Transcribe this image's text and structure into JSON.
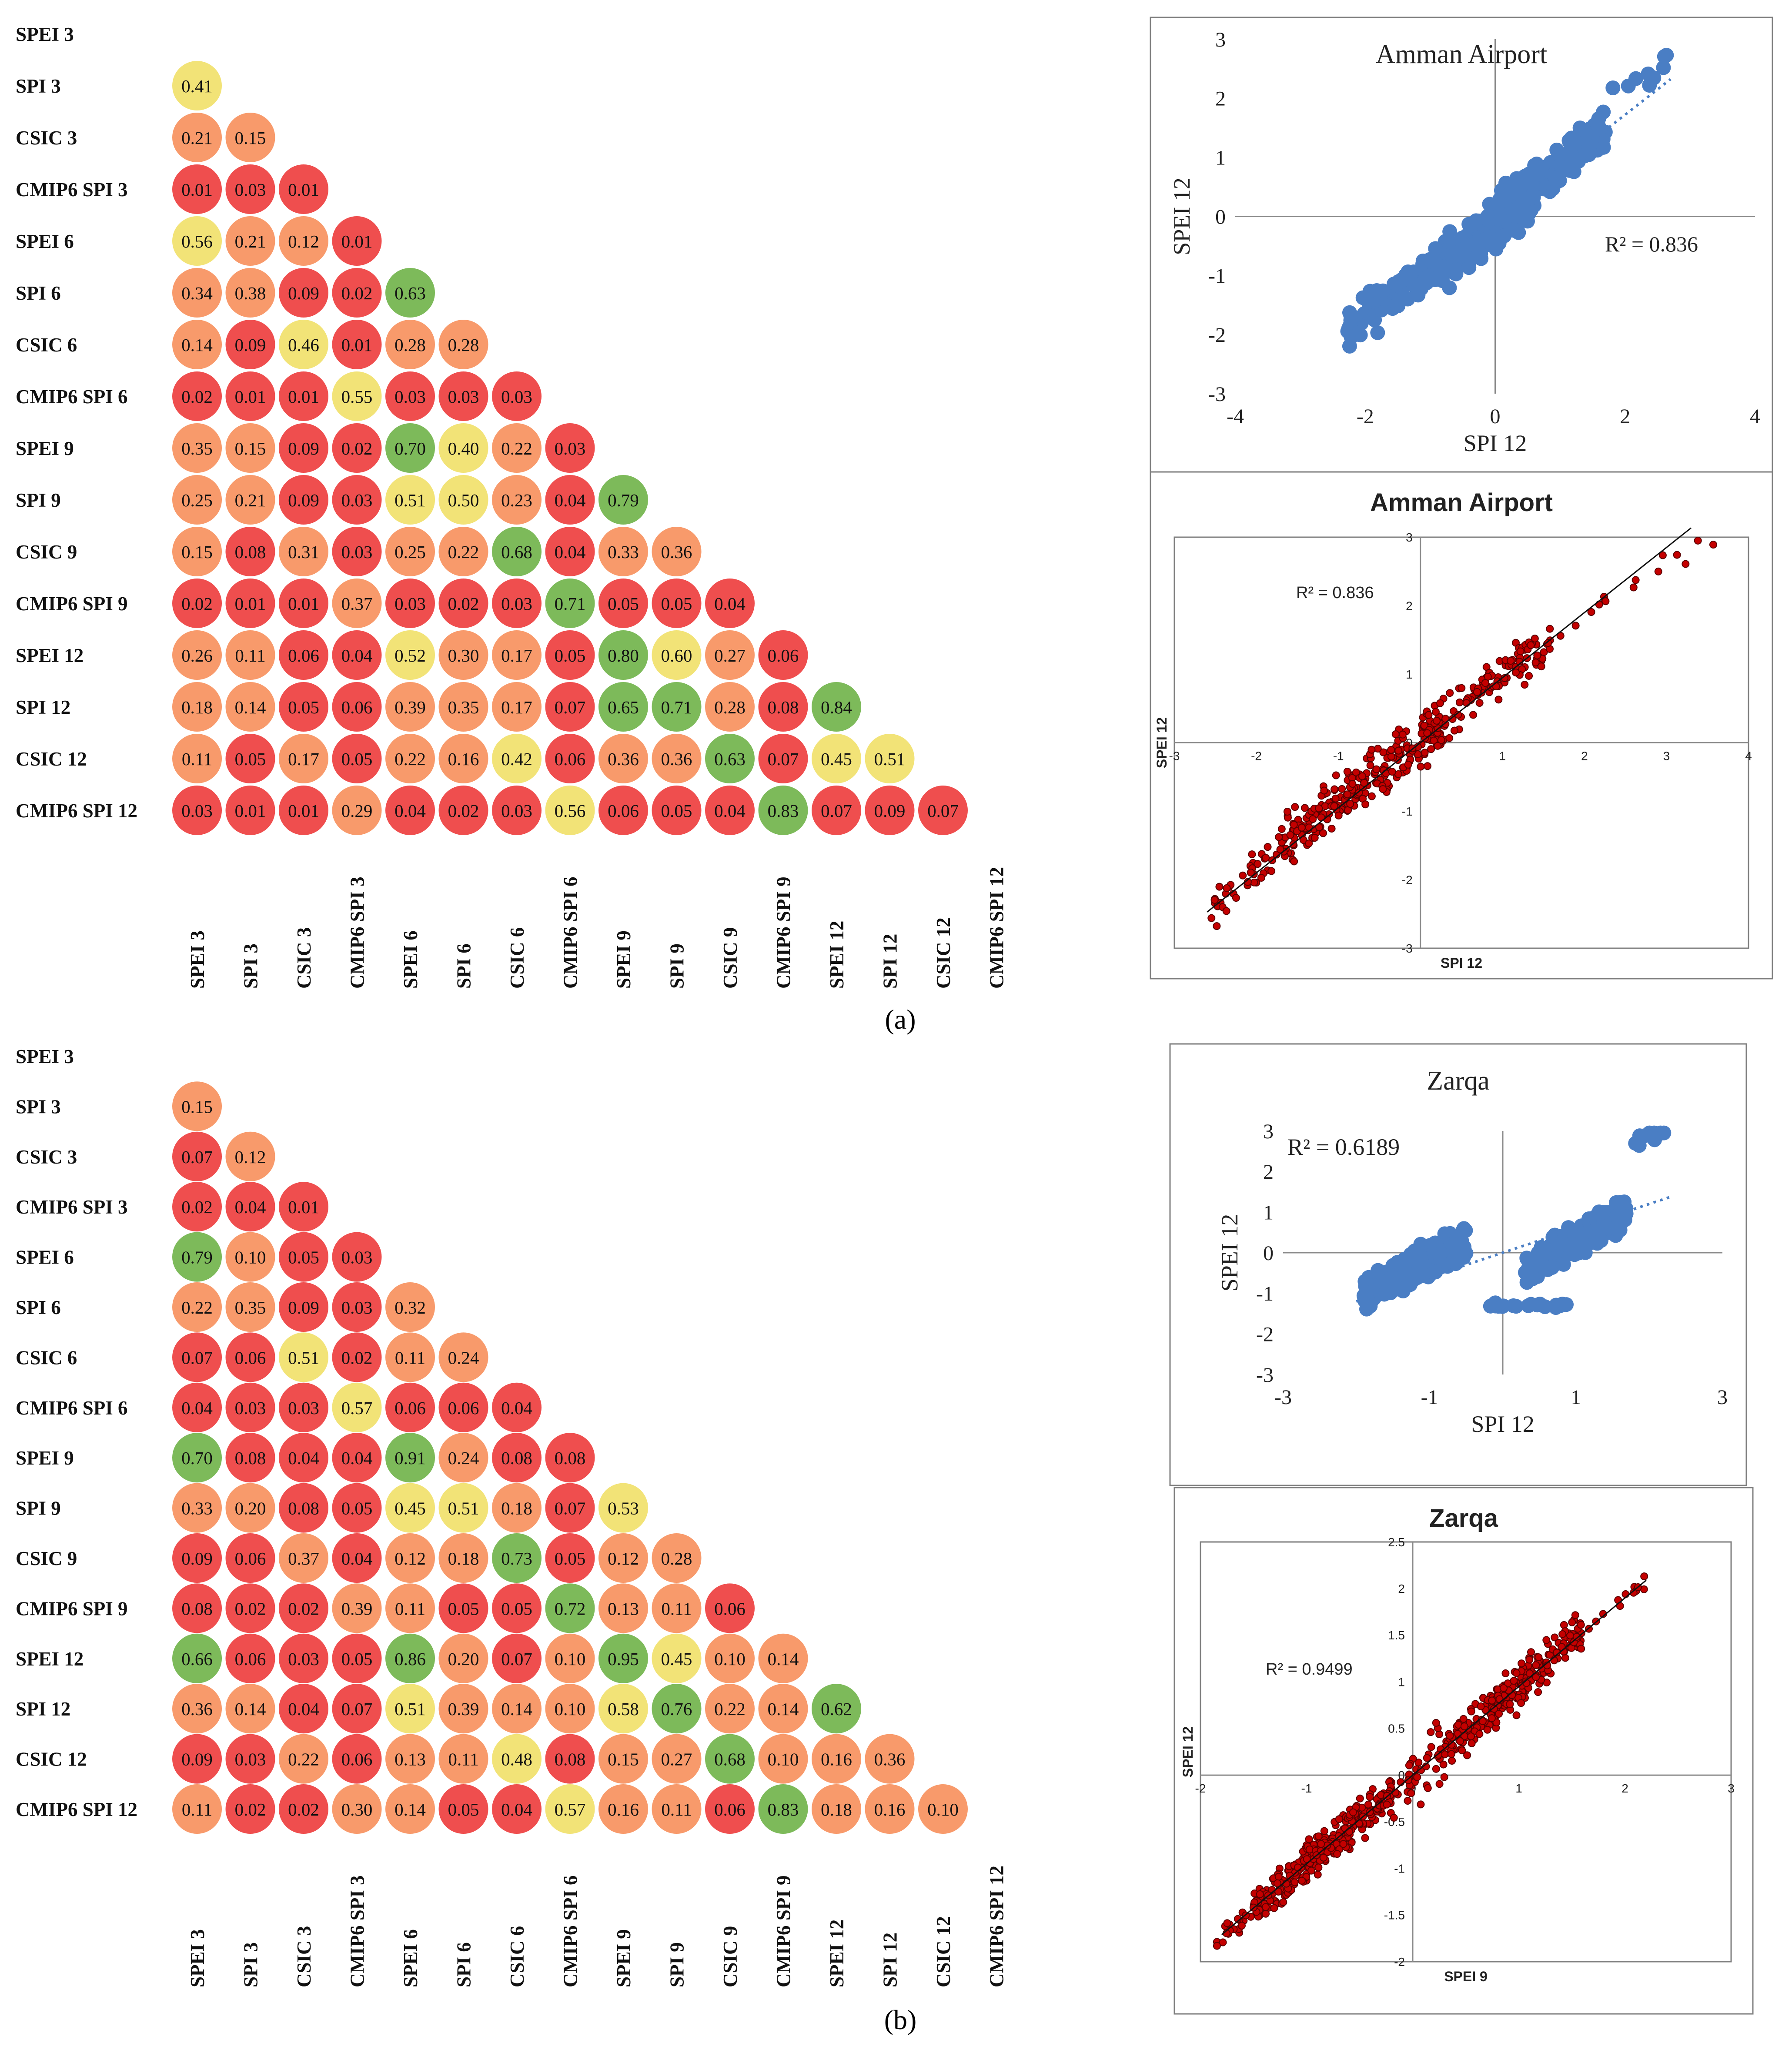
{
  "figure": {
    "panel_a": "(a)",
    "panel_b": "(b)"
  },
  "colors": {
    "low": "#ef4e4e",
    "mid_low": "#f89a6b",
    "mid": "#f2e377",
    "high": "#7dba5a",
    "blue_points": "#4a7ec4",
    "blue_trend": "#4a7ec4",
    "red_points": "#c40000",
    "red_point_edge": "#5a0000"
  },
  "chart_data": [
    {
      "type": "heatmap",
      "panel": "a",
      "labels": [
        "SPEI 3",
        "SPI 3",
        "CSIC 3",
        "CMIP6 SPI 3",
        "SPEI 6",
        "SPI 6",
        "CSIC 6",
        "CMIP6 SPI 6",
        "SPEI 9",
        "SPI 9",
        "CSIC 9",
        "CMIP6 SPI 9",
        "SPEI 12",
        "SPI 12",
        "CSIC 12",
        "CMIP6 SPI 12"
      ],
      "values": [
        [],
        [
          "0.41"
        ],
        [
          "0.21",
          "0.15"
        ],
        [
          "0.01",
          "0.03",
          "0.01"
        ],
        [
          "0.56",
          "0.21",
          "0.12",
          "0.01"
        ],
        [
          "0.34",
          "0.38",
          "0.09",
          "0.02",
          "0.63"
        ],
        [
          "0.14",
          "0.09",
          "0.46",
          "0.01",
          "0.28",
          "0.28"
        ],
        [
          "0.02",
          "0.01",
          "0.01",
          "0.55",
          "0.03",
          "0.03",
          "0.03"
        ],
        [
          "0.35",
          "0.15",
          "0.09",
          "0.02",
          "0.70",
          "0.40",
          "0.22",
          "0.03"
        ],
        [
          "0.25",
          "0.21",
          "0.09",
          "0.03",
          "0.51",
          "0.50",
          "0.23",
          "0.04",
          "0.79"
        ],
        [
          "0.15",
          "0.08",
          "0.31",
          "0.03",
          "0.25",
          "0.22",
          "0.68",
          "0.04",
          "0.33",
          "0.36"
        ],
        [
          "0.02",
          "0.01",
          "0.01",
          "0.37",
          "0.03",
          "0.02",
          "0.03",
          "0.71",
          "0.05",
          "0.05",
          "0.04"
        ],
        [
          "0.26",
          "0.11",
          "0.06",
          "0.04",
          "0.52",
          "0.30",
          "0.17",
          "0.05",
          "0.80",
          "0.60",
          "0.27",
          "0.06"
        ],
        [
          "0.18",
          "0.14",
          "0.05",
          "0.06",
          "0.39",
          "0.35",
          "0.17",
          "0.07",
          "0.65",
          "0.71",
          "0.28",
          "0.08",
          "0.84"
        ],
        [
          "0.11",
          "0.05",
          "0.17",
          "0.05",
          "0.22",
          "0.16",
          "0.42",
          "0.06",
          "0.36",
          "0.36",
          "0.63",
          "0.07",
          "0.45",
          "0.51"
        ],
        [
          "0.03",
          "0.01",
          "0.01",
          "0.29",
          "0.04",
          "0.02",
          "0.03",
          "0.56",
          "0.06",
          "0.05",
          "0.04",
          "0.83",
          "0.07",
          "0.09",
          "0.07"
        ]
      ]
    },
    {
      "type": "heatmap",
      "panel": "b",
      "labels": [
        "SPEI 3",
        "SPI 3",
        "CSIC 3",
        "CMIP6 SPI 3",
        "SPEI 6",
        "SPI 6",
        "CSIC 6",
        "CMIP6 SPI 6",
        "SPEI 9",
        "SPI 9",
        "CSIC 9",
        "CMIP6 SPI 9",
        "SPEI 12",
        "SPI 12",
        "CSIC 12",
        "CMIP6 SPI 12"
      ],
      "values": [
        [],
        [
          "0.15"
        ],
        [
          "0.07",
          "0.12"
        ],
        [
          "0.02",
          "0.04",
          "0.01"
        ],
        [
          "0.79",
          "0.10",
          "0.05",
          "0.03"
        ],
        [
          "0.22",
          "0.35",
          "0.09",
          "0.03",
          "0.32"
        ],
        [
          "0.07",
          "0.06",
          "0.51",
          "0.02",
          "0.11",
          "0.24"
        ],
        [
          "0.04",
          "0.03",
          "0.03",
          "0.57",
          "0.06",
          "0.06",
          "0.04"
        ],
        [
          "0.70",
          "0.08",
          "0.04",
          "0.04",
          "0.91",
          "0.24",
          "0.08",
          "0.08"
        ],
        [
          "0.33",
          "0.20",
          "0.08",
          "0.05",
          "0.45",
          "0.51",
          "0.18",
          "0.07",
          "0.53"
        ],
        [
          "0.09",
          "0.06",
          "0.37",
          "0.04",
          "0.12",
          "0.18",
          "0.73",
          "0.05",
          "0.12",
          "0.28"
        ],
        [
          "0.08",
          "0.02",
          "0.02",
          "0.39",
          "0.11",
          "0.05",
          "0.05",
          "0.72",
          "0.13",
          "0.11",
          "0.06"
        ],
        [
          "0.66",
          "0.06",
          "0.03",
          "0.05",
          "0.86",
          "0.20",
          "0.07",
          "0.10",
          "0.95",
          "0.45",
          "0.10",
          "0.14"
        ],
        [
          "0.36",
          "0.14",
          "0.04",
          "0.07",
          "0.51",
          "0.39",
          "0.14",
          "0.10",
          "0.58",
          "0.76",
          "0.22",
          "0.14",
          "0.62"
        ],
        [
          "0.09",
          "0.03",
          "0.22",
          "0.06",
          "0.13",
          "0.11",
          "0.48",
          "0.08",
          "0.15",
          "0.27",
          "0.68",
          "0.10",
          "0.16",
          "0.36"
        ],
        [
          "0.11",
          "0.02",
          "0.02",
          "0.30",
          "0.14",
          "0.05",
          "0.04",
          "0.57",
          "0.16",
          "0.11",
          "0.06",
          "0.83",
          "0.18",
          "0.16",
          "0.10"
        ]
      ]
    },
    {
      "type": "scatter",
      "style": "blue",
      "title": "Amman Airport",
      "xlabel": "SPI 12",
      "ylabel": "SPEI 12",
      "r2": "R² = 0.836",
      "xlim": [
        -4,
        4
      ],
      "ylim": [
        -3,
        3
      ],
      "xticks": [
        "-4",
        "-2",
        "0",
        "2",
        "4"
      ],
      "yticks": [
        "3",
        "2",
        "1",
        "0",
        "-1",
        "-2",
        "-3"
      ],
      "trend": {
        "slope": 0.86,
        "intercept": 0.0,
        "xfrom": -2.3,
        "xto": 2.7
      },
      "clusters": [
        {
          "n": 250,
          "xmin": -0.8,
          "xmax": 0.6,
          "slope": 0.85,
          "intercept": -0.15,
          "noise": 0.32
        },
        {
          "n": 160,
          "xmin": 0.0,
          "xmax": 1.7,
          "slope": 0.8,
          "intercept": 0.1,
          "noise": 0.3
        },
        {
          "n": 80,
          "xmin": -2.3,
          "xmax": -0.8,
          "slope": 0.8,
          "intercept": -0.1,
          "noise": 0.35
        },
        {
          "n": 10,
          "xmin": 1.8,
          "xmax": 2.7,
          "slope": 0.9,
          "intercept": 0.3,
          "noise": 0.25
        }
      ]
    },
    {
      "type": "scatter",
      "style": "red",
      "title": "Amman Airport",
      "xlabel": "SPI 12",
      "ylabel": "SPEI 12",
      "r2": "R² = 0.836",
      "xlim": [
        -3,
        4
      ],
      "ylim": [
        -3,
        3
      ],
      "xticks": [
        "-3",
        "-2",
        "-1",
        "0",
        "1",
        "2",
        "3",
        "4"
      ],
      "yticks": [
        "3",
        "2",
        "1",
        "0",
        "-1",
        "-2",
        "-3"
      ],
      "trend": {
        "slope": 0.95,
        "intercept": 0.0,
        "xfrom": -2.6,
        "xto": 3.3
      },
      "clusters": [
        {
          "n": 240,
          "xmin": -1.7,
          "xmax": 0.3,
          "slope": 0.85,
          "intercept": 0.0,
          "noise": 0.35
        },
        {
          "n": 120,
          "xmin": 0.0,
          "xmax": 1.6,
          "slope": 0.9,
          "intercept": 0.1,
          "noise": 0.3
        },
        {
          "n": 40,
          "xmin": -2.6,
          "xmax": -1.7,
          "slope": 0.9,
          "intercept": -0.1,
          "noise": 0.3
        },
        {
          "n": 15,
          "xmin": 1.6,
          "xmax": 3.6,
          "slope": 0.85,
          "intercept": 0.1,
          "noise": 0.2
        }
      ]
    },
    {
      "type": "scatter",
      "style": "blue",
      "title": "Zarqa",
      "xlabel": "SPI 12",
      "ylabel": "SPEI 12",
      "r2": "R² = 0.6189",
      "xlim": [
        -3,
        3
      ],
      "ylim": [
        -3,
        3
      ],
      "xticks": [
        "-3",
        "-1",
        "1",
        "3"
      ],
      "yticks": [
        "3",
        "2",
        "1",
        "0",
        "-1",
        "-2",
        "-3"
      ],
      "trend": {
        "slope": 0.6,
        "intercept": 0.0,
        "xfrom": -2.0,
        "xto": 2.3
      },
      "clusters": [
        {
          "n": 320,
          "xmin": -1.9,
          "xmax": -0.5,
          "slope": 0.9,
          "intercept": 0.7,
          "noise": 0.35
        },
        {
          "n": 260,
          "xmin": 0.3,
          "xmax": 1.7,
          "slope": 1.0,
          "intercept": -0.7,
          "noise": 0.35
        },
        {
          "n": 12,
          "xmin": 1.8,
          "xmax": 2.2,
          "slope": 1.0,
          "intercept": 0.9,
          "noise": 0.2
        },
        {
          "n": 20,
          "xmin": -0.2,
          "xmax": 0.9,
          "slope": 0.0,
          "intercept": -1.3,
          "noise": 0.05
        }
      ]
    },
    {
      "type": "scatter",
      "style": "red",
      "title": "Zarqa",
      "xlabel": "SPEI 9",
      "ylabel": "SPEI 12",
      "r2": "R² = 0.9499",
      "xlim": [
        -2,
        3
      ],
      "ylim": [
        -2,
        2.5
      ],
      "xticks": [
        "-2",
        "-1",
        "0",
        "1",
        "2",
        "3"
      ],
      "yticks": [
        "2.5",
        "2",
        "1.5",
        "1",
        "0.5",
        "0",
        "-0.5",
        "-1",
        "-1.5",
        "-2"
      ],
      "trend": {
        "slope": 0.95,
        "intercept": 0.0,
        "xfrom": -1.8,
        "xto": 2.2
      },
      "clusters": [
        {
          "n": 300,
          "xmin": -1.5,
          "xmax": -0.2,
          "slope": 0.95,
          "intercept": 0.0,
          "noise": 0.18
        },
        {
          "n": 260,
          "xmin": 0.3,
          "xmax": 1.6,
          "slope": 0.95,
          "intercept": 0.0,
          "noise": 0.2
        },
        {
          "n": 40,
          "xmin": -0.2,
          "xmax": 0.3,
          "slope": 0.9,
          "intercept": 0.0,
          "noise": 0.3
        },
        {
          "n": 20,
          "xmin": -1.9,
          "xmax": -1.5,
          "slope": 0.95,
          "intercept": 0.0,
          "noise": 0.12
        },
        {
          "n": 12,
          "xmin": 1.6,
          "xmax": 2.2,
          "slope": 0.95,
          "intercept": 0.0,
          "noise": 0.12
        }
      ]
    }
  ]
}
